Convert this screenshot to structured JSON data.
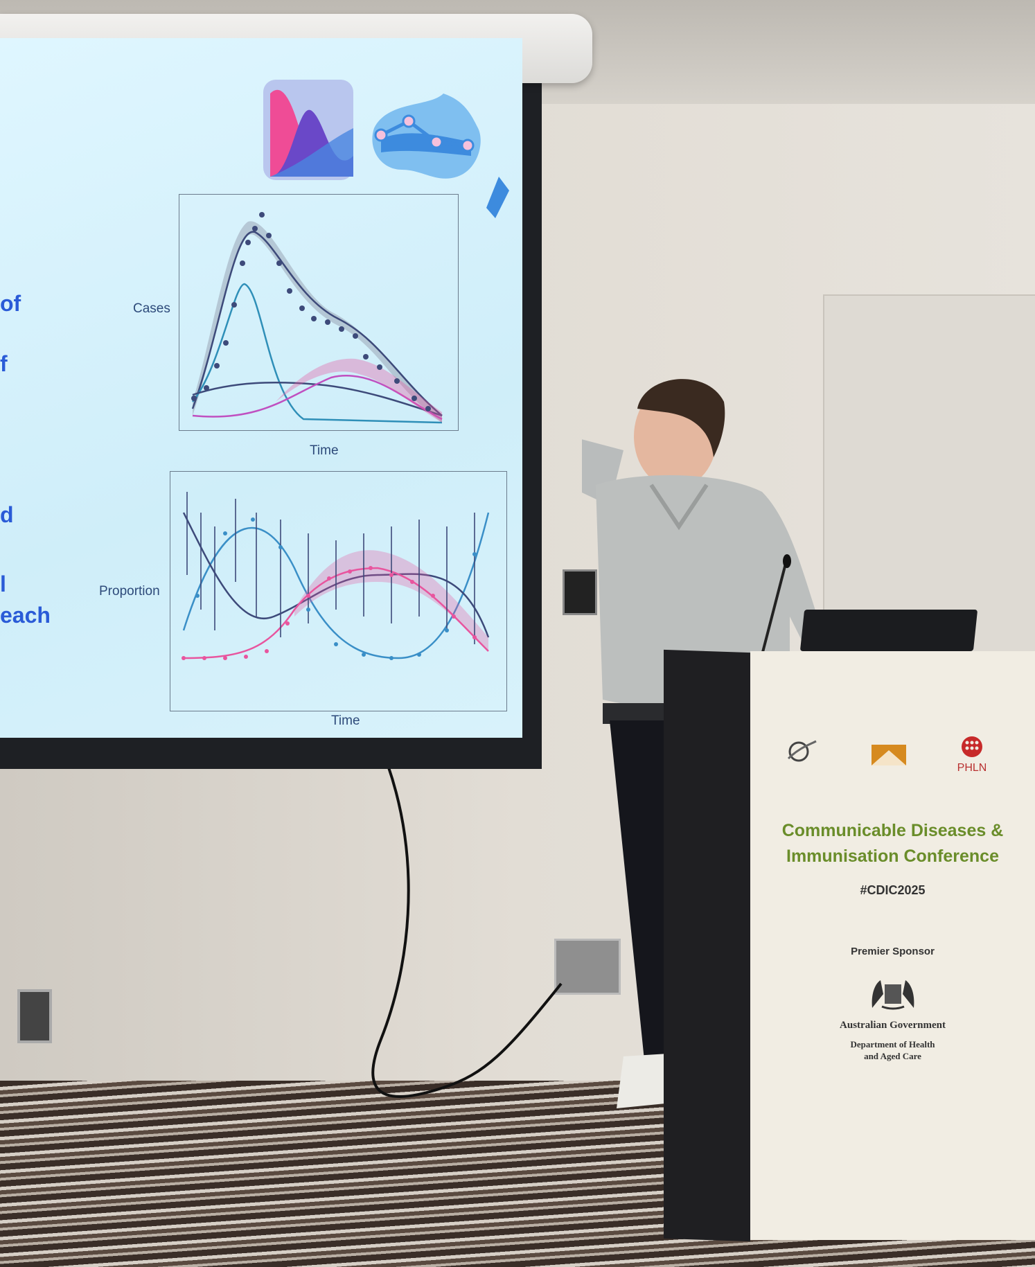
{
  "slide": {
    "partial_words": [
      "of",
      "f",
      "d",
      "l",
      "each"
    ],
    "top_chart": {
      "ylabel": "Cases",
      "xlabel": "Time"
    },
    "bottom_chart": {
      "ylabel": "Proportion",
      "xlabel": "Time"
    }
  },
  "podium": {
    "conference_line1": "Communicable Diseases &",
    "conference_line2": "Immunisation Conference",
    "hashtag": "#CDIC2025",
    "sponsor_heading": "Premier Sponsor",
    "sponsor_name": "Australian Government",
    "sponsor_dept_line1": "Department of Health",
    "sponsor_dept_line2": "and Aged Care",
    "logo3_text": "PHLN"
  },
  "colors": {
    "slide_bg": "#d8f2fb",
    "slide_text": "#2a5bd7",
    "series_dark": "#3d4a7a",
    "series_blue": "#3a8fc7",
    "series_purple": "#6a4fa8",
    "series_pink": "#e8559e",
    "podium_green": "#6a8d2a"
  }
}
